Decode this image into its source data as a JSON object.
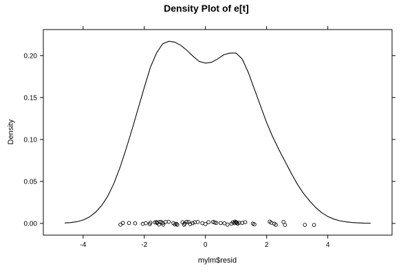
{
  "chart_data": {
    "type": "line",
    "title": "Density Plot of e[t]",
    "xlabel": "mylm$resid",
    "ylabel": "Density",
    "xlim": [
      -5.3,
      6.1
    ],
    "ylim": [
      -0.014,
      0.231
    ],
    "x_ticks": [
      -4,
      -2,
      0,
      2,
      4
    ],
    "x_tick_labels": [
      "-4",
      "-2",
      "0",
      "2",
      "4"
    ],
    "y_ticks": [
      0.0,
      0.05,
      0.1,
      0.15,
      0.2
    ],
    "y_tick_labels": [
      "0.00",
      "0.05",
      "0.10",
      "0.15",
      "0.20"
    ],
    "grid": false,
    "series": [
      {
        "kind": "density-curve",
        "x": [
          -4.6,
          -4.4,
          -4.2,
          -4.0,
          -3.8,
          -3.6,
          -3.4,
          -3.2,
          -3.0,
          -2.8,
          -2.6,
          -2.4,
          -2.2,
          -2.0,
          -1.8,
          -1.6,
          -1.4,
          -1.2,
          -1.0,
          -0.8,
          -0.6,
          -0.4,
          -0.2,
          0.0,
          0.2,
          0.4,
          0.6,
          0.8,
          1.0,
          1.2,
          1.4,
          1.6,
          1.8,
          2.0,
          2.2,
          2.4,
          2.6,
          2.8,
          3.0,
          3.2,
          3.4,
          3.6,
          3.8,
          4.0,
          4.2,
          4.4,
          4.6,
          4.8,
          5.0,
          5.2,
          5.4
        ],
        "y": [
          0.0005,
          0.001,
          0.002,
          0.004,
          0.0075,
          0.013,
          0.021,
          0.032,
          0.047,
          0.066,
          0.088,
          0.112,
          0.137,
          0.162,
          0.186,
          0.203,
          0.214,
          0.217,
          0.216,
          0.212,
          0.206,
          0.199,
          0.193,
          0.191,
          0.192,
          0.196,
          0.201,
          0.203,
          0.203,
          0.196,
          0.18,
          0.16,
          0.14,
          0.12,
          0.103,
          0.088,
          0.074,
          0.06,
          0.047,
          0.036,
          0.027,
          0.019,
          0.0128,
          0.0082,
          0.0051,
          0.003,
          0.0018,
          0.001,
          0.0006,
          0.0003,
          0.0002
        ]
      },
      {
        "kind": "jittered-points",
        "x": [
          -2.78,
          -2.7,
          -2.5,
          -2.3,
          -2.05,
          -1.95,
          -1.82,
          -1.8,
          -1.65,
          -1.6,
          -1.58,
          -1.52,
          -1.5,
          -1.45,
          -1.4,
          -1.38,
          -1.3,
          -1.2,
          -1.05,
          -1.0,
          -0.95,
          -0.92,
          -0.75,
          -0.7,
          -0.68,
          -0.62,
          -0.55,
          -0.5,
          -0.42,
          -0.35,
          -0.25,
          -0.1,
          0.0,
          0.1,
          0.25,
          0.3,
          0.35,
          0.5,
          0.62,
          0.72,
          0.85,
          0.9,
          0.95,
          0.97,
          1.0,
          1.02,
          1.05,
          1.1,
          1.2,
          1.3,
          1.55,
          1.6,
          2.1,
          2.15,
          2.25,
          2.3,
          2.55,
          2.6,
          3.25,
          3.55
        ],
        "y": [
          -0.0015,
          0.0005,
          0.0004,
          0.0001,
          -0.0006,
          0.0002,
          -0.001,
          0.0008,
          0.0012,
          0.0015,
          0.0005,
          -0.0013,
          0.0018,
          0.0017,
          0.0005,
          -0.0014,
          0.0019,
          0.0019,
          0.0004,
          -0.0013,
          -0.0006,
          -0.0016,
          0.0013,
          -0.0016,
          -0.0001,
          0.0018,
          0.0017,
          -0.0009,
          0.0003,
          0.0014,
          0.0017,
          0.0003,
          -0.0009,
          0.0014,
          0.0018,
          0.0011,
          0.0006,
          0.0004,
          0.0001,
          -0.0015,
          -0.0004,
          0.0014,
          0.0004,
          0.0021,
          0.0014,
          0.0009,
          -0.0003,
          0.0007,
          0.0007,
          0.0014,
          -0.0003,
          -0.0012,
          0.0021,
          0.0008,
          -0.0004,
          -0.0017,
          0.0017,
          -0.0018,
          -0.0018,
          -0.0019
        ]
      }
    ]
  }
}
